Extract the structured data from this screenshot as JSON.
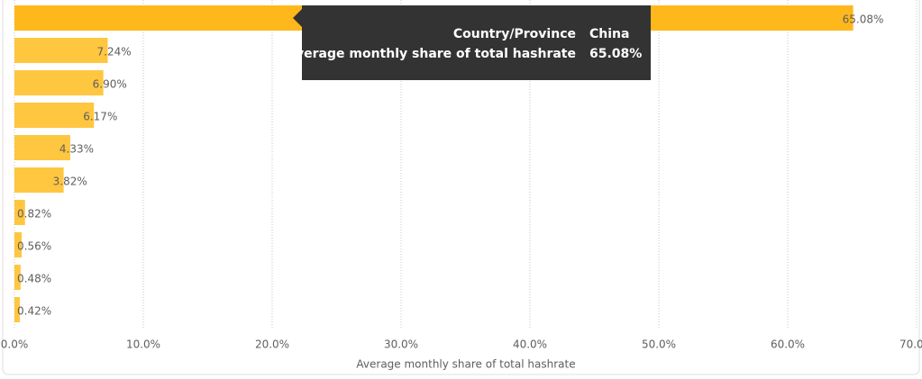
{
  "chart_data": {
    "type": "hbar",
    "x_label": "Average monthly share of total hashrate",
    "categories": [
      null,
      null,
      null,
      null,
      null,
      null,
      null,
      null,
      null,
      null
    ],
    "values": [
      65.08,
      7.24,
      6.9,
      6.17,
      4.33,
      3.82,
      0.82,
      0.56,
      0.48,
      0.42
    ],
    "value_labels": [
      "65.08%",
      "7.24%",
      "6.90%",
      "6.17%",
      "4.33%",
      "3.82%",
      "0.82%",
      "0.56%",
      "0.48%",
      "0.42%"
    ],
    "colors": [
      "#ffb81c",
      "#ffc640",
      "#ffc640",
      "#ffc640",
      "#ffc640",
      "#ffc640",
      "#ffc640",
      "#ffc640",
      "#ffc640",
      "#ffc640"
    ],
    "xlim": [
      0,
      70
    ],
    "xticks": [
      {
        "value": 0,
        "label": "0.0%"
      },
      {
        "value": 10,
        "label": "10.0%"
      },
      {
        "value": 20,
        "label": "20.0%"
      },
      {
        "value": 30,
        "label": "30.0%"
      },
      {
        "value": 40,
        "label": "40.0%"
      },
      {
        "value": 50,
        "label": "50.0%"
      },
      {
        "value": 60,
        "label": "60.0%"
      },
      {
        "value": 70,
        "label": "70.0%"
      }
    ],
    "grid": true,
    "tooltip": {
      "rows": [
        {
          "label": "Country/Province",
          "value": "China"
        },
        {
          "label": "Average monthly share of total hashrate",
          "value": "65.08%"
        }
      ]
    }
  }
}
